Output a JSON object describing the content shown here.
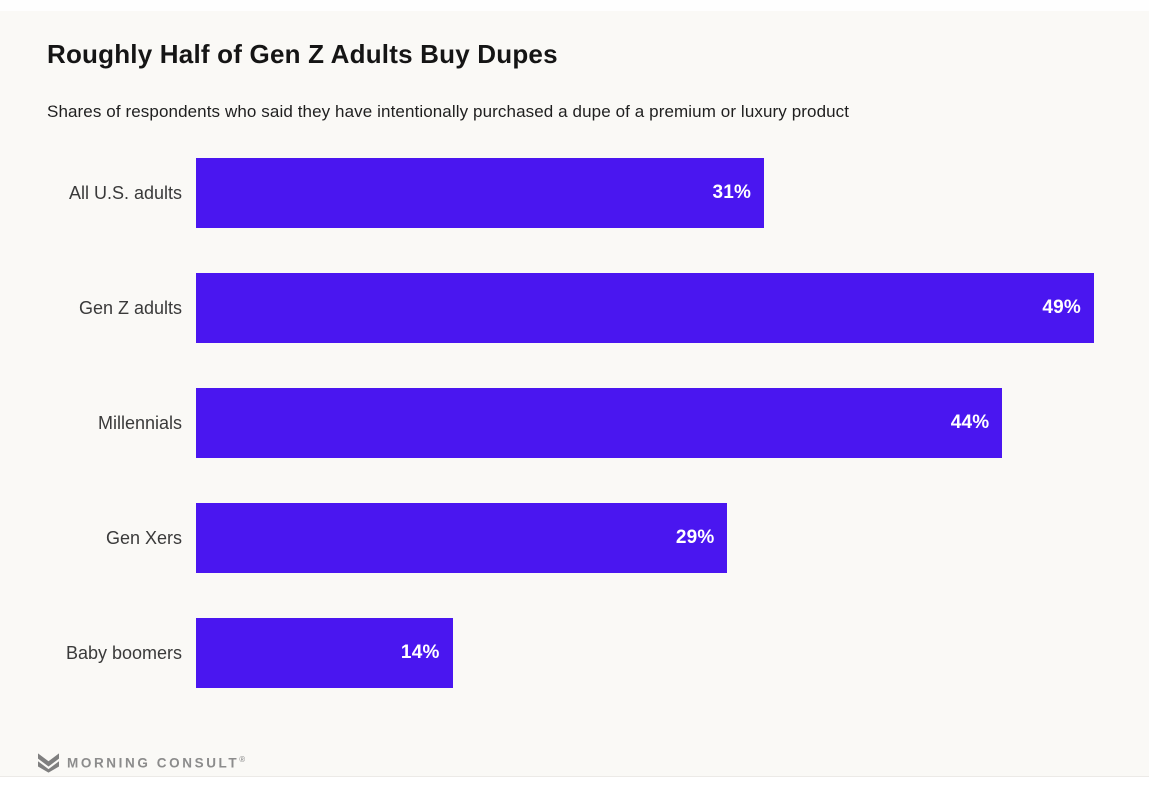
{
  "page": {
    "title": "Roughly Half of Gen Z Adults Buy Dupes",
    "subtitle": "Shares of respondents who said they have intentionally purchased a dupe of a premium or luxury product"
  },
  "chart_data": {
    "type": "bar",
    "orientation": "horizontal",
    "title": "Roughly Half of Gen Z Adults Buy Dupes",
    "subtitle": "Shares of respondents who said they have intentionally purchased a dupe of a premium or luxury product",
    "categories": [
      "All U.S. adults",
      "Gen Z adults",
      "Millennials",
      "Gen Xers",
      "Baby boomers"
    ],
    "values": [
      31,
      49,
      44,
      29,
      14
    ],
    "value_labels": [
      "31%",
      "49%",
      "44%",
      "29%",
      "14%"
    ],
    "unit": "%",
    "xlabel": "",
    "ylabel": "",
    "xlim": [
      0,
      49
    ],
    "grid": false,
    "legend": false,
    "bar_color": "#4a16f0",
    "value_label_color": "#ffffff",
    "value_label_position": "inside-end",
    "category_label_color": "#3a3a3a"
  },
  "footer": {
    "brand": "MORNING CONSULT",
    "trademark": "®",
    "logo_icon": "morning-consult-m-icon",
    "brand_color": "#8c8c8c"
  },
  "colors": {
    "background": "#faf9f6",
    "title_color": "#151515",
    "subtitle_color": "#1f1f1f"
  }
}
